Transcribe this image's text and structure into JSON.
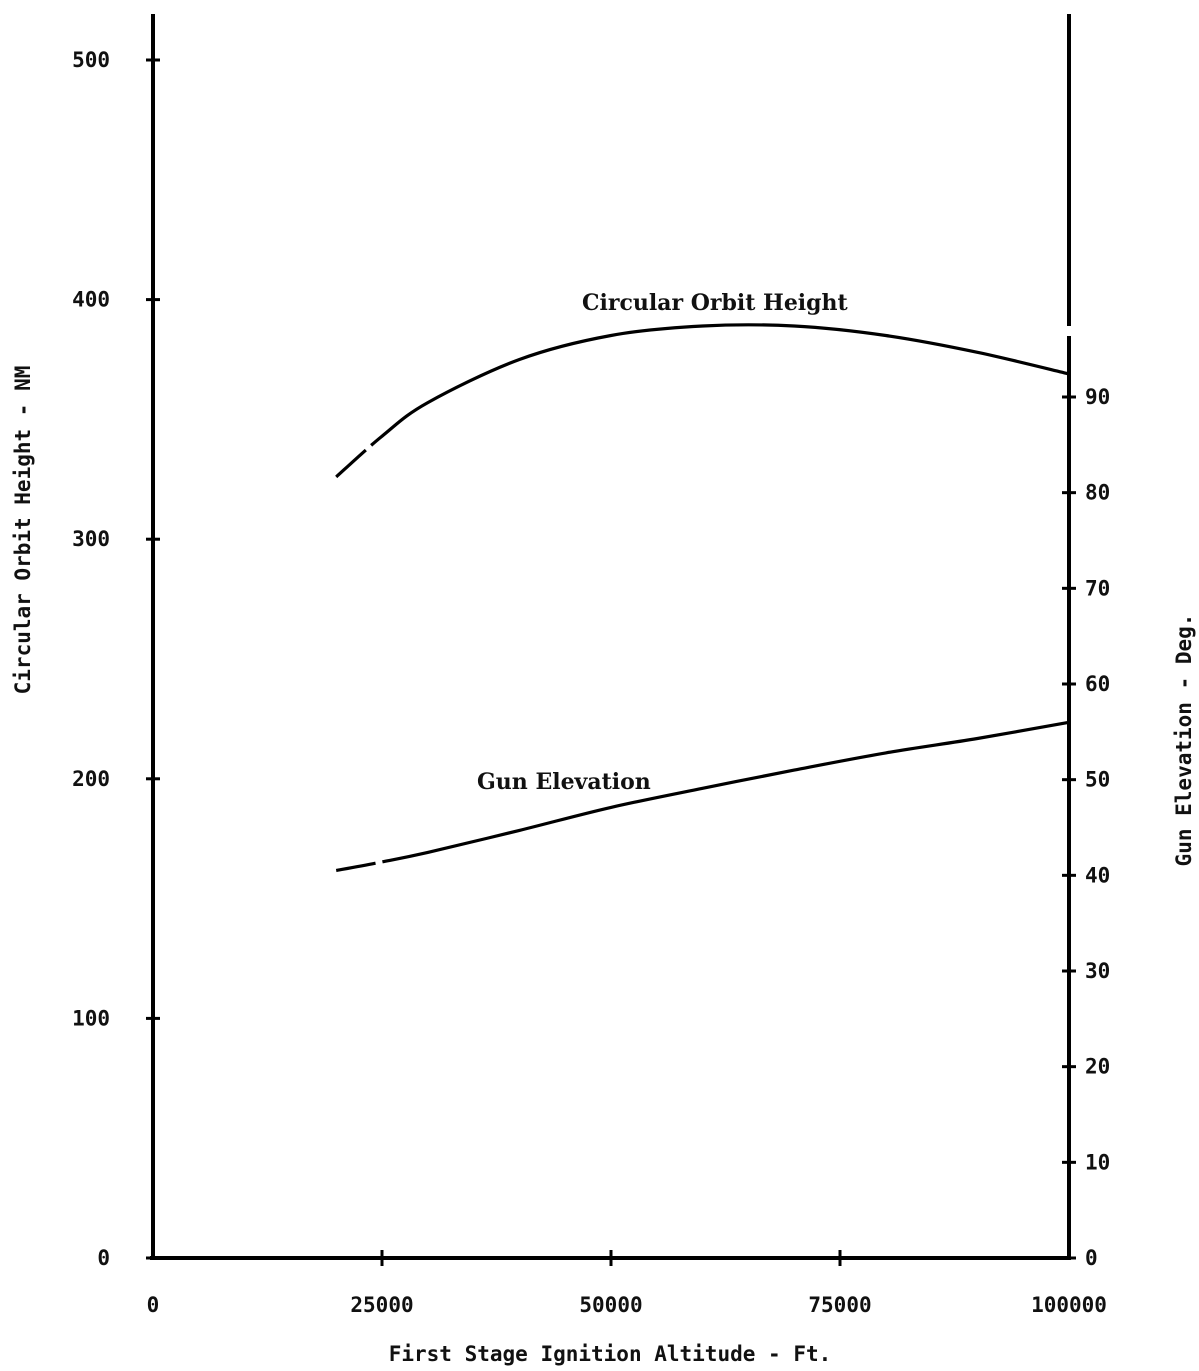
{
  "chart_data": {
    "type": "line",
    "xlabel": "First Stage Ignition Altitude - Ft.",
    "ylabel_left": "Circular Orbit Height - NM",
    "ylabel_right": "Gun Elevation - Deg.",
    "x_ticks": [
      "0",
      "25000",
      "50000",
      "75000",
      "100000"
    ],
    "y_left_ticks": [
      "0",
      "100",
      "200",
      "300",
      "400",
      "500"
    ],
    "y_right_ticks": [
      "0",
      "10",
      "20",
      "30",
      "40",
      "50",
      "60",
      "70",
      "80",
      "90"
    ],
    "xlim": [
      0,
      100000
    ],
    "ylim_left": [
      0,
      500
    ],
    "ylim_right": [
      0,
      90
    ],
    "grid": false,
    "series": [
      {
        "name": "Circular Orbit Height",
        "axis": "left",
        "x": [
          20000,
          25000,
          30000,
          40000,
          50000,
          60000,
          70000,
          80000,
          90000,
          100000
        ],
        "values": [
          326,
          343,
          357,
          375,
          385,
          389,
          389,
          385,
          378,
          369
        ]
      },
      {
        "name": "Gun Elevation",
        "axis": "right",
        "x": [
          20000,
          25000,
          30000,
          40000,
          50000,
          60000,
          70000,
          80000,
          90000,
          100000
        ],
        "values": [
          40.5,
          41.4,
          42.4,
          44.7,
          47.1,
          49.1,
          51.0,
          52.8,
          54.3,
          56.0
        ]
      }
    ]
  }
}
